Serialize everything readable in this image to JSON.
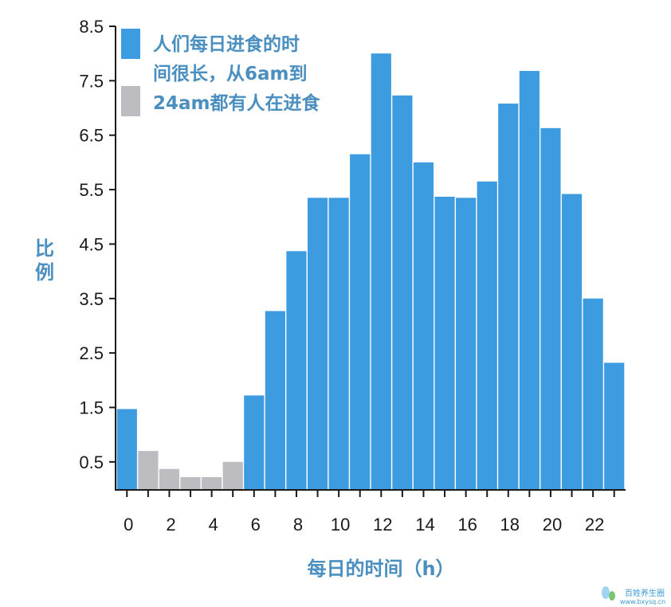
{
  "chart_data": {
    "type": "bar",
    "title": "",
    "xlabel": "每日的时间（h）",
    "ylabel": "比例",
    "ylim": [
      0,
      8.5
    ],
    "yticks": [
      0.5,
      1.5,
      2.5,
      3.5,
      4.5,
      5.5,
      6.5,
      7.5,
      8.5
    ],
    "ytick_labels": [
      "0.5",
      "1.5",
      "2.5",
      "3.5",
      "4.5",
      "5.5",
      "6.5",
      "7.5",
      "8.5"
    ],
    "x": [
      0,
      1,
      2,
      3,
      4,
      5,
      6,
      7,
      8,
      9,
      10,
      11,
      12,
      13,
      14,
      15,
      16,
      17,
      18,
      19,
      20,
      21,
      22,
      23
    ],
    "xtick_labels": [
      "0",
      "2",
      "4",
      "6",
      "8",
      "10",
      "12",
      "14",
      "16",
      "18",
      "20",
      "22"
    ],
    "values": [
      1.47,
      0.7,
      0.37,
      0.22,
      0.22,
      0.5,
      1.72,
      3.27,
      4.37,
      5.35,
      5.35,
      6.15,
      8.0,
      7.23,
      6.0,
      5.37,
      5.35,
      5.65,
      7.08,
      7.68,
      6.63,
      5.42,
      3.5,
      2.32
    ],
    "bar_group": [
      "blue",
      "gray",
      "gray",
      "gray",
      "gray",
      "gray",
      "blue",
      "blue",
      "blue",
      "blue",
      "blue",
      "blue",
      "blue",
      "blue",
      "blue",
      "blue",
      "blue",
      "blue",
      "blue",
      "blue",
      "blue",
      "blue",
      "blue",
      "blue"
    ],
    "colors": {
      "blue": "#3d9be0",
      "gray": "#bdbcc1",
      "label": "#4a8fc0",
      "axis": "#1a1a1a"
    },
    "legend": {
      "position": "top-left",
      "text_lines": [
        "人们每日进食的时",
        "间很长，从6am到",
        "24am都有人在进食"
      ]
    },
    "grid": false
  },
  "watermark": {
    "name": "百姓养生圈",
    "url": "www.bxysq.cn"
  }
}
